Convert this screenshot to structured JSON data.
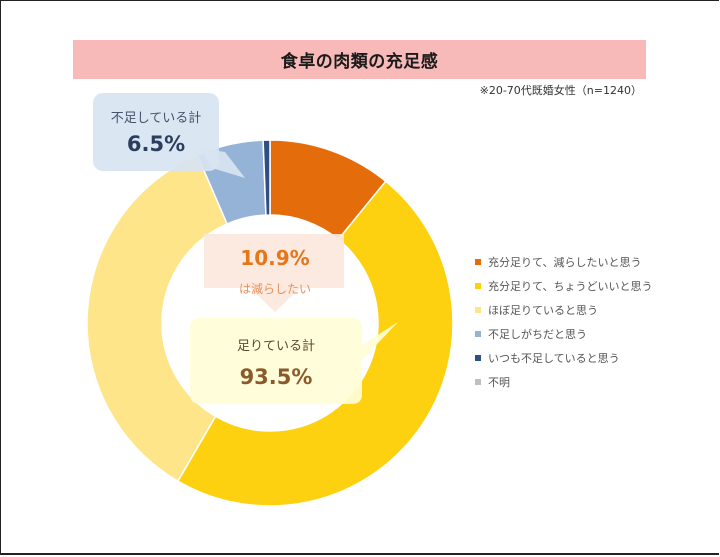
{
  "title": "食卓の肉類の充足感",
  "note": "※20-70代既婚女性（n=1240）",
  "callouts": {
    "short": {
      "label": "不足している計",
      "value": "6.5%"
    },
    "reduce": {
      "value": "10.9%",
      "label": "は減らしたい"
    },
    "enough": {
      "label": "足りている計",
      "value": "93.5%"
    }
  },
  "legend": [
    {
      "label": "充分足りて、減らしたいと思う",
      "color": "#e46c0a"
    },
    {
      "label": "充分足りて、ちょうどいいと思う",
      "color": "#fdd10f"
    },
    {
      "label": "ほぼ足りていると思う",
      "color": "#fee58a"
    },
    {
      "label": "不足しがちだと思う",
      "color": "#95b3d7"
    },
    {
      "label": "いつも不足していると思う",
      "color": "#2f4f80"
    },
    {
      "label": "不明",
      "color": "#bfbfbf"
    }
  ],
  "chart_data": {
    "type": "pie",
    "subtype": "donut",
    "title": "食卓の肉類の充足感",
    "subtitle": "※20-70代既婚女性（n=1240）",
    "categories": [
      "充分足りて、減らしたいと思う",
      "充分足りて、ちょうどいいと思う",
      "ほぼ足りていると思う",
      "不足しがちだと思う",
      "いつも不足していると思う",
      "不明"
    ],
    "values": [
      10.9,
      47.5,
      35.1,
      5.9,
      0.6,
      0.0
    ],
    "colors": [
      "#e46c0a",
      "#fdd10f",
      "#fee58a",
      "#95b3d7",
      "#2f4f80",
      "#bfbfbf"
    ],
    "start_angle": "12 o'clock, clockwise",
    "annotations": [
      {
        "text": "不足している計 6.5%",
        "target": [
          "不足しがちだと思う",
          "いつも不足していると思う"
        ]
      },
      {
        "text": "10.9% は減らしたい",
        "target": [
          "充分足りて、減らしたいと思う"
        ]
      },
      {
        "text": "足りている計 93.5%",
        "target": [
          "充分足りて、減らしたいと思う",
          "充分足りて、ちょうどいいと思う",
          "ほぼ足りていると思う"
        ]
      }
    ],
    "legend_position": "right"
  }
}
